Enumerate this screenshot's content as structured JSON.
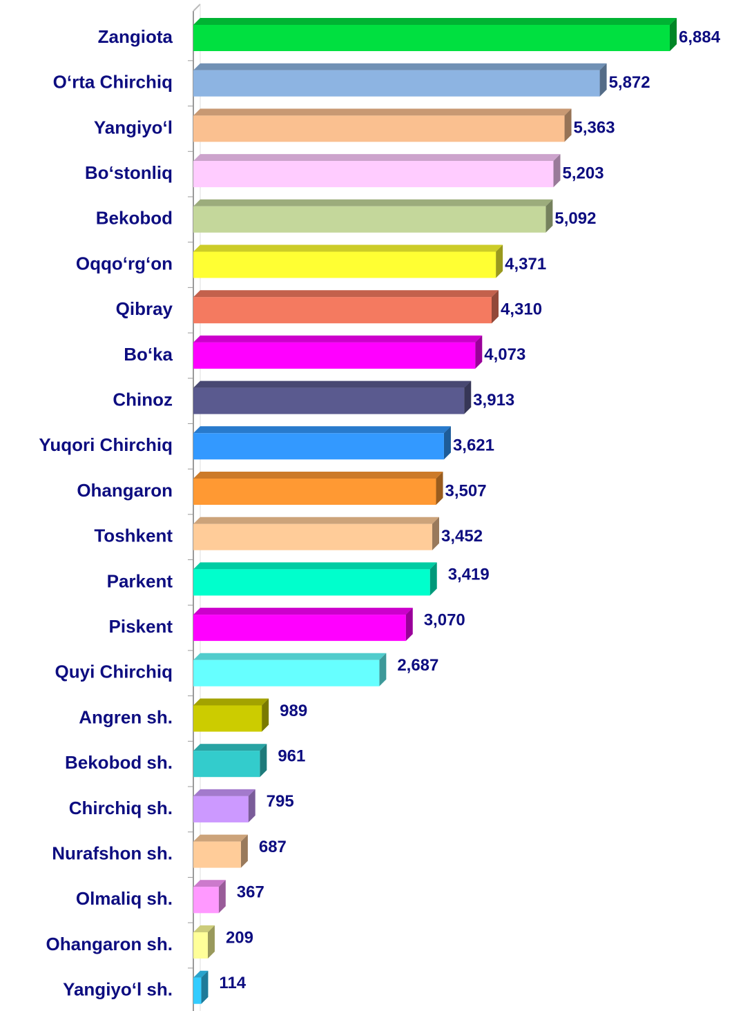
{
  "chart_data": {
    "type": "bar",
    "orientation": "horizontal",
    "categories": [
      "Zangiota",
      "O‘rta Chirchiq",
      "Yangiyo‘l",
      "Bo‘stonliq",
      "Bekobod",
      "Oqqo‘rg‘on",
      "Qibray",
      "Bo‘ka",
      "Chinoz",
      "Yuqori Chirchiq",
      "Ohangaron",
      "Toshkent",
      "Parkent",
      "Piskent",
      "Quyi Chirchiq",
      "Angren sh.",
      "Bekobod sh.",
      "Chirchiq sh.",
      "Nurafshon sh.",
      "Olmaliq sh.",
      "Ohangaron sh.",
      "Yangiyo‘l sh."
    ],
    "values": [
      6884,
      5872,
      5363,
      5203,
      5092,
      4371,
      4310,
      4073,
      3913,
      3621,
      3507,
      3452,
      3419,
      3070,
      2687,
      989,
      961,
      795,
      687,
      367,
      209,
      114
    ],
    "value_labels": [
      "6,884",
      "5,872",
      "5,363",
      "5,203",
      "5,092",
      "4,371",
      "4,310",
      "4,073",
      "3,913",
      "3,621",
      "3,507",
      "3,452",
      "3,419",
      "3,070",
      "2,687",
      "989",
      "961",
      "795",
      "687",
      "367",
      "209",
      "114"
    ],
    "colors": [
      "#00e040",
      "#8db4e2",
      "#fac090",
      "#ffccff",
      "#c4d79b",
      "#ffff33",
      "#f47a60",
      "#ff00ff",
      "#5a5a8f",
      "#3399ff",
      "#ff9933",
      "#ffcc99",
      "#00ffcc",
      "#ff00ff",
      "#66ffff",
      "#cccc00",
      "#33cccc",
      "#cc99ff",
      "#ffcc99",
      "#ff99ff",
      "#ffff99",
      "#33ccff"
    ]
  }
}
